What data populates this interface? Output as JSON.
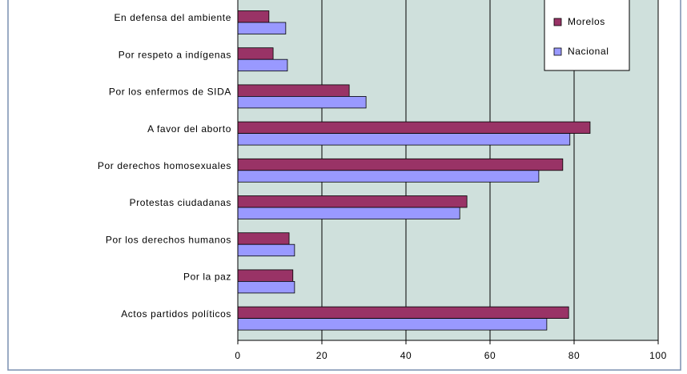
{
  "chart_data": {
    "type": "hbar",
    "categories": [
      "En defensa del ambiente",
      "Por respeto a indígenas",
      "Por los enfermos de SIDA",
      "A favor del aborto",
      "Por derechos homosexuales",
      "Protestas ciudadanas",
      "Por los derechos humanos",
      "Por la paz",
      "Actos partidos políticos"
    ],
    "series": [
      {
        "name": "Morelos",
        "color": "#993366",
        "values": [
          7.4,
          8.4,
          26.5,
          83.8,
          77.3,
          54.5,
          12.2,
          13.1,
          78.7
        ]
      },
      {
        "name": "Nacional",
        "color": "#9999ff",
        "values": [
          11.4,
          11.8,
          30.5,
          79,
          71.6,
          52.8,
          13.5,
          13.5,
          73.5
        ]
      }
    ],
    "xlim": [
      0,
      100
    ],
    "xticks": [
      0,
      20,
      40,
      60,
      80,
      100
    ],
    "grid": true,
    "legend": "top-right"
  }
}
